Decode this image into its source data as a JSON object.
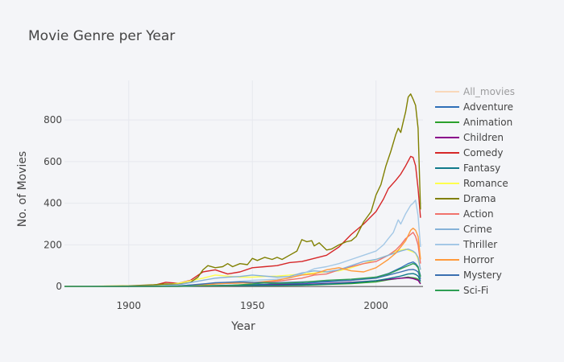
{
  "chart_data": {
    "type": "line",
    "title": "Movie Genre per Year",
    "xlabel": "Year",
    "ylabel": "No. of Movies",
    "xlim": [
      1874,
      2019
    ],
    "ylim": [
      -15,
      990
    ],
    "x_ticks": [
      1900,
      1950,
      2000
    ],
    "y_ticks": [
      0,
      200,
      400,
      600,
      800
    ],
    "grid": true,
    "legend_position": "right",
    "series": [
      {
        "name": "All_movies",
        "color": "#ffbc7d",
        "hidden": true,
        "points": []
      },
      {
        "name": "Adventure",
        "color": "#2f6fb8",
        "points": [
          [
            1874,
            0
          ],
          [
            1900,
            1
          ],
          [
            1920,
            2
          ],
          [
            1930,
            4
          ],
          [
            1940,
            6
          ],
          [
            1950,
            8
          ],
          [
            1960,
            12
          ],
          [
            1970,
            15
          ],
          [
            1980,
            22
          ],
          [
            1990,
            30
          ],
          [
            2000,
            45
          ],
          [
            2005,
            62
          ],
          [
            2010,
            90
          ],
          [
            2013,
            110
          ],
          [
            2015,
            118
          ],
          [
            2016,
            110
          ],
          [
            2017,
            95
          ],
          [
            2018,
            50
          ]
        ]
      },
      {
        "name": "Animation",
        "color": "#2ca02c",
        "points": [
          [
            1874,
            0
          ],
          [
            1910,
            1
          ],
          [
            1930,
            3
          ],
          [
            1940,
            4
          ],
          [
            1950,
            4
          ],
          [
            1960,
            5
          ],
          [
            1970,
            6
          ],
          [
            1980,
            10
          ],
          [
            1990,
            14
          ],
          [
            2000,
            22
          ],
          [
            2005,
            32
          ],
          [
            2010,
            40
          ],
          [
            2013,
            45
          ],
          [
            2015,
            42
          ],
          [
            2016,
            40
          ],
          [
            2017,
            35
          ],
          [
            2018,
            15
          ]
        ]
      },
      {
        "name": "Children",
        "color": "#8b008b",
        "points": [
          [
            1874,
            0
          ],
          [
            1920,
            1
          ],
          [
            1940,
            4
          ],
          [
            1950,
            5
          ],
          [
            1960,
            8
          ],
          [
            1970,
            10
          ],
          [
            1980,
            14
          ],
          [
            1990,
            20
          ],
          [
            2000,
            28
          ],
          [
            2005,
            34
          ],
          [
            2010,
            40
          ],
          [
            2013,
            42
          ],
          [
            2015,
            38
          ],
          [
            2017,
            30
          ],
          [
            2018,
            12
          ]
        ]
      },
      {
        "name": "Comedy",
        "color": "#d62728",
        "points": [
          [
            1874,
            0
          ],
          [
            1895,
            2
          ],
          [
            1900,
            3
          ],
          [
            1910,
            5
          ],
          [
            1915,
            20
          ],
          [
            1920,
            15
          ],
          [
            1925,
            30
          ],
          [
            1930,
            70
          ],
          [
            1935,
            80
          ],
          [
            1940,
            60
          ],
          [
            1945,
            70
          ],
          [
            1950,
            90
          ],
          [
            1955,
            95
          ],
          [
            1960,
            100
          ],
          [
            1965,
            115
          ],
          [
            1970,
            120
          ],
          [
            1975,
            135
          ],
          [
            1980,
            150
          ],
          [
            1985,
            190
          ],
          [
            1990,
            250
          ],
          [
            1995,
            300
          ],
          [
            2000,
            360
          ],
          [
            2003,
            420
          ],
          [
            2005,
            470
          ],
          [
            2008,
            510
          ],
          [
            2010,
            540
          ],
          [
            2012,
            580
          ],
          [
            2014,
            625
          ],
          [
            2015,
            620
          ],
          [
            2016,
            580
          ],
          [
            2017,
            470
          ],
          [
            2018,
            330
          ]
        ]
      },
      {
        "name": "Fantasy",
        "color": "#117a8b",
        "points": [
          [
            1874,
            0
          ],
          [
            1920,
            2
          ],
          [
            1940,
            4
          ],
          [
            1950,
            5
          ],
          [
            1960,
            6
          ],
          [
            1970,
            8
          ],
          [
            1980,
            12
          ],
          [
            1990,
            18
          ],
          [
            2000,
            28
          ],
          [
            2005,
            38
          ],
          [
            2010,
            50
          ],
          [
            2013,
            60
          ],
          [
            2015,
            62
          ],
          [
            2016,
            58
          ],
          [
            2017,
            50
          ],
          [
            2018,
            25
          ]
        ]
      },
      {
        "name": "Romance",
        "color": "#ffff4d",
        "points": [
          [
            1874,
            0
          ],
          [
            1910,
            5
          ],
          [
            1920,
            15
          ],
          [
            1930,
            40
          ],
          [
            1935,
            55
          ],
          [
            1940,
            50
          ],
          [
            1945,
            45
          ],
          [
            1950,
            45
          ],
          [
            1955,
            48
          ],
          [
            1960,
            50
          ],
          [
            1965,
            55
          ],
          [
            1970,
            60
          ],
          [
            1975,
            65
          ],
          [
            1980,
            70
          ],
          [
            1985,
            75
          ],
          [
            1990,
            90
          ],
          [
            1995,
            110
          ],
          [
            2000,
            130
          ],
          [
            2005,
            150
          ],
          [
            2008,
            170
          ],
          [
            2010,
            175
          ],
          [
            2012,
            180
          ],
          [
            2014,
            170
          ],
          [
            2016,
            160
          ],
          [
            2017,
            130
          ],
          [
            2018,
            80
          ]
        ]
      },
      {
        "name": "Drama",
        "color": "#808000",
        "points": [
          [
            1874,
            0
          ],
          [
            1895,
            2
          ],
          [
            1900,
            3
          ],
          [
            1910,
            8
          ],
          [
            1915,
            12
          ],
          [
            1920,
            10
          ],
          [
            1925,
            20
          ],
          [
            1928,
            45
          ],
          [
            1930,
            80
          ],
          [
            1932,
            100
          ],
          [
            1935,
            90
          ],
          [
            1938,
            95
          ],
          [
            1940,
            110
          ],
          [
            1942,
            95
          ],
          [
            1945,
            110
          ],
          [
            1948,
            105
          ],
          [
            1950,
            135
          ],
          [
            1952,
            125
          ],
          [
            1955,
            140
          ],
          [
            1958,
            130
          ],
          [
            1960,
            140
          ],
          [
            1962,
            130
          ],
          [
            1965,
            150
          ],
          [
            1968,
            170
          ],
          [
            1970,
            225
          ],
          [
            1972,
            215
          ],
          [
            1974,
            220
          ],
          [
            1975,
            195
          ],
          [
            1977,
            210
          ],
          [
            1980,
            175
          ],
          [
            1982,
            180
          ],
          [
            1985,
            200
          ],
          [
            1988,
            215
          ],
          [
            1990,
            220
          ],
          [
            1992,
            240
          ],
          [
            1995,
            310
          ],
          [
            1998,
            360
          ],
          [
            2000,
            440
          ],
          [
            2002,
            490
          ],
          [
            2004,
            580
          ],
          [
            2006,
            650
          ],
          [
            2008,
            730
          ],
          [
            2009,
            760
          ],
          [
            2010,
            740
          ],
          [
            2011,
            790
          ],
          [
            2012,
            840
          ],
          [
            2013,
            910
          ],
          [
            2014,
            925
          ],
          [
            2015,
            900
          ],
          [
            2016,
            870
          ],
          [
            2017,
            760
          ],
          [
            2018,
            370
          ]
        ]
      },
      {
        "name": "Action",
        "color": "#f0726c",
        "points": [
          [
            1874,
            0
          ],
          [
            1920,
            3
          ],
          [
            1930,
            10
          ],
          [
            1940,
            15
          ],
          [
            1950,
            18
          ],
          [
            1960,
            25
          ],
          [
            1970,
            40
          ],
          [
            1975,
            55
          ],
          [
            1980,
            60
          ],
          [
            1985,
            80
          ],
          [
            1990,
            95
          ],
          [
            1995,
            110
          ],
          [
            2000,
            120
          ],
          [
            2005,
            150
          ],
          [
            2008,
            175
          ],
          [
            2010,
            200
          ],
          [
            2012,
            230
          ],
          [
            2014,
            250
          ],
          [
            2015,
            260
          ],
          [
            2016,
            240
          ],
          [
            2017,
            200
          ],
          [
            2018,
            110
          ]
        ]
      },
      {
        "name": "Crime",
        "color": "#86b2d8",
        "points": [
          [
            1874,
            0
          ],
          [
            1910,
            2
          ],
          [
            1920,
            8
          ],
          [
            1930,
            30
          ],
          [
            1935,
            40
          ],
          [
            1940,
            45
          ],
          [
            1945,
            48
          ],
          [
            1950,
            55
          ],
          [
            1955,
            50
          ],
          [
            1960,
            45
          ],
          [
            1965,
            48
          ],
          [
            1970,
            65
          ],
          [
            1975,
            75
          ],
          [
            1980,
            70
          ],
          [
            1985,
            80
          ],
          [
            1990,
            100
          ],
          [
            1995,
            120
          ],
          [
            2000,
            130
          ],
          [
            2005,
            150
          ],
          [
            2010,
            170
          ],
          [
            2013,
            180
          ],
          [
            2015,
            170
          ],
          [
            2016,
            160
          ],
          [
            2017,
            140
          ],
          [
            2018,
            80
          ]
        ]
      },
      {
        "name": "Thriller",
        "color": "#a4c8e6",
        "points": [
          [
            1874,
            0
          ],
          [
            1920,
            3
          ],
          [
            1930,
            10
          ],
          [
            1940,
            20
          ],
          [
            1950,
            30
          ],
          [
            1955,
            32
          ],
          [
            1960,
            35
          ],
          [
            1965,
            40
          ],
          [
            1970,
            60
          ],
          [
            1975,
            85
          ],
          [
            1980,
            95
          ],
          [
            1985,
            110
          ],
          [
            1990,
            130
          ],
          [
            1995,
            150
          ],
          [
            2000,
            170
          ],
          [
            2003,
            200
          ],
          [
            2005,
            230
          ],
          [
            2007,
            260
          ],
          [
            2009,
            320
          ],
          [
            2010,
            300
          ],
          [
            2012,
            350
          ],
          [
            2014,
            390
          ],
          [
            2015,
            400
          ],
          [
            2016,
            415
          ],
          [
            2017,
            340
          ],
          [
            2018,
            190
          ]
        ]
      },
      {
        "name": "Horror",
        "color": "#ff9a3c",
        "points": [
          [
            1874,
            0
          ],
          [
            1920,
            2
          ],
          [
            1930,
            8
          ],
          [
            1935,
            12
          ],
          [
            1940,
            15
          ],
          [
            1950,
            18
          ],
          [
            1960,
            30
          ],
          [
            1970,
            55
          ],
          [
            1975,
            60
          ],
          [
            1980,
            80
          ],
          [
            1985,
            90
          ],
          [
            1990,
            75
          ],
          [
            1995,
            70
          ],
          [
            2000,
            90
          ],
          [
            2005,
            130
          ],
          [
            2008,
            160
          ],
          [
            2010,
            190
          ],
          [
            2012,
            220
          ],
          [
            2014,
            270
          ],
          [
            2015,
            280
          ],
          [
            2016,
            270
          ],
          [
            2017,
            240
          ],
          [
            2018,
            130
          ]
        ]
      },
      {
        "name": "Mystery",
        "color": "#3a6fb0",
        "points": [
          [
            1874,
            0
          ],
          [
            1920,
            2
          ],
          [
            1930,
            12
          ],
          [
            1935,
            18
          ],
          [
            1940,
            20
          ],
          [
            1945,
            22
          ],
          [
            1950,
            20
          ],
          [
            1960,
            18
          ],
          [
            1970,
            22
          ],
          [
            1980,
            25
          ],
          [
            1990,
            30
          ],
          [
            2000,
            40
          ],
          [
            2005,
            55
          ],
          [
            2010,
            70
          ],
          [
            2013,
            80
          ],
          [
            2015,
            82
          ],
          [
            2016,
            78
          ],
          [
            2017,
            70
          ],
          [
            2018,
            35
          ]
        ]
      },
      {
        "name": "Sci-Fi",
        "color": "#2e9e54",
        "points": [
          [
            1874,
            0
          ],
          [
            1920,
            1
          ],
          [
            1930,
            3
          ],
          [
            1940,
            4
          ],
          [
            1950,
            12
          ],
          [
            1955,
            18
          ],
          [
            1960,
            15
          ],
          [
            1970,
            20
          ],
          [
            1980,
            30
          ],
          [
            1990,
            35
          ],
          [
            2000,
            45
          ],
          [
            2005,
            60
          ],
          [
            2010,
            85
          ],
          [
            2013,
            100
          ],
          [
            2015,
            110
          ],
          [
            2016,
            105
          ],
          [
            2017,
            90
          ],
          [
            2018,
            45
          ]
        ]
      }
    ]
  }
}
